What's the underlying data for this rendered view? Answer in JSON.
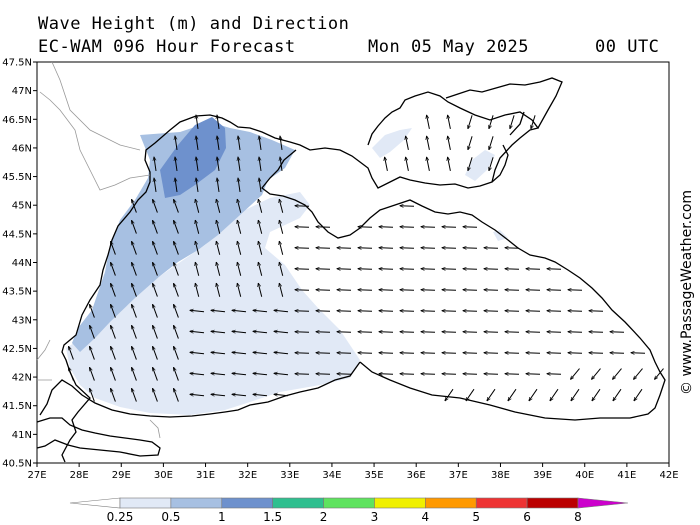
{
  "header": {
    "title_line1": "Wave Height (m) and Direction",
    "model": "EC-WAM 096 Hour Forecast",
    "date": "Mon 05 May 2025",
    "time": "00 UTC"
  },
  "watermark": "© www.PassageWeather.com",
  "map": {
    "lon_range": [
      27,
      42
    ],
    "lat_range": [
      40.5,
      47.5
    ],
    "lon_ticks": [
      "27E",
      "28E",
      "29E",
      "30E",
      "31E",
      "32E",
      "33E",
      "34E",
      "35E",
      "36E",
      "37E",
      "38E",
      "39E",
      "40E",
      "41E",
      "42E"
    ],
    "lat_ticks": [
      "40.5N",
      "41N",
      "41.5N",
      "42N",
      "42.5N",
      "43N",
      "43.5N",
      "44N",
      "44.5N",
      "45N",
      "45.5N",
      "46N",
      "46.5N",
      "47N",
      "47.5N"
    ],
    "wave_direction": "predominantly north-northeast in the western basin, westward in the central and eastern basin"
  },
  "colorbar": {
    "labels": [
      "0.25",
      "0.5",
      "1",
      "1.5",
      "2",
      "3",
      "4",
      "5",
      "6",
      "8"
    ],
    "colors": [
      "#ffffff",
      "#e1e9f6",
      "#a7c0e2",
      "#6e91cd",
      "#2fbf8f",
      "#5fe35f",
      "#f0f000",
      "#ff9900",
      "#ee3333",
      "#bb0000",
      "#cc00cc"
    ]
  },
  "colors": {
    "wave_lt_0_5": "#e1e9f6",
    "wave_0_5_1": "#a7c0e2",
    "wave_1_1_5": "#6e91cd",
    "land": "#ffffff",
    "coast": "#000000"
  }
}
